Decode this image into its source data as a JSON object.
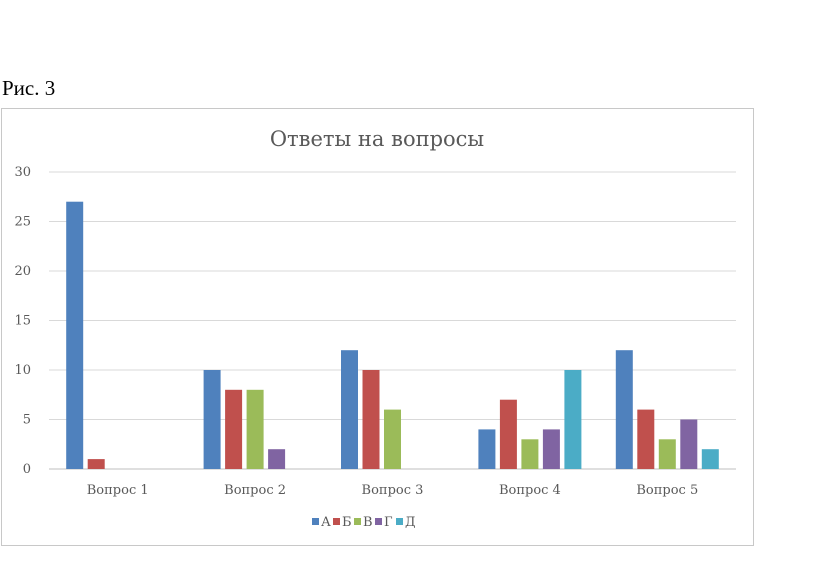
{
  "caption": "Рис. 3",
  "chart_data": {
    "type": "bar",
    "title": "Ответы на вопросы",
    "xlabel": "",
    "ylabel": "",
    "categories": [
      "Вопрос 1",
      "Вопрос 2",
      "Вопрос 3",
      "Вопрос 4",
      "Вопрос 5"
    ],
    "ylim": [
      0,
      30
    ],
    "yticks": [
      0,
      5,
      10,
      15,
      20,
      25,
      30
    ],
    "grid": true,
    "legend": "bottom",
    "series": [
      {
        "name": "А",
        "color": "#4f81bd",
        "values": [
          27,
          10,
          12,
          4,
          12
        ]
      },
      {
        "name": "Б",
        "color": "#c0504d",
        "values": [
          1,
          8,
          10,
          7,
          6
        ]
      },
      {
        "name": "В",
        "color": "#9bbb59",
        "values": [
          0,
          8,
          6,
          3,
          3
        ]
      },
      {
        "name": "Г",
        "color": "#8064a2",
        "values": [
          0,
          2,
          0,
          4,
          5
        ]
      },
      {
        "name": "Д",
        "color": "#4bacc6",
        "values": [
          0,
          0,
          0,
          10,
          2
        ]
      }
    ]
  }
}
